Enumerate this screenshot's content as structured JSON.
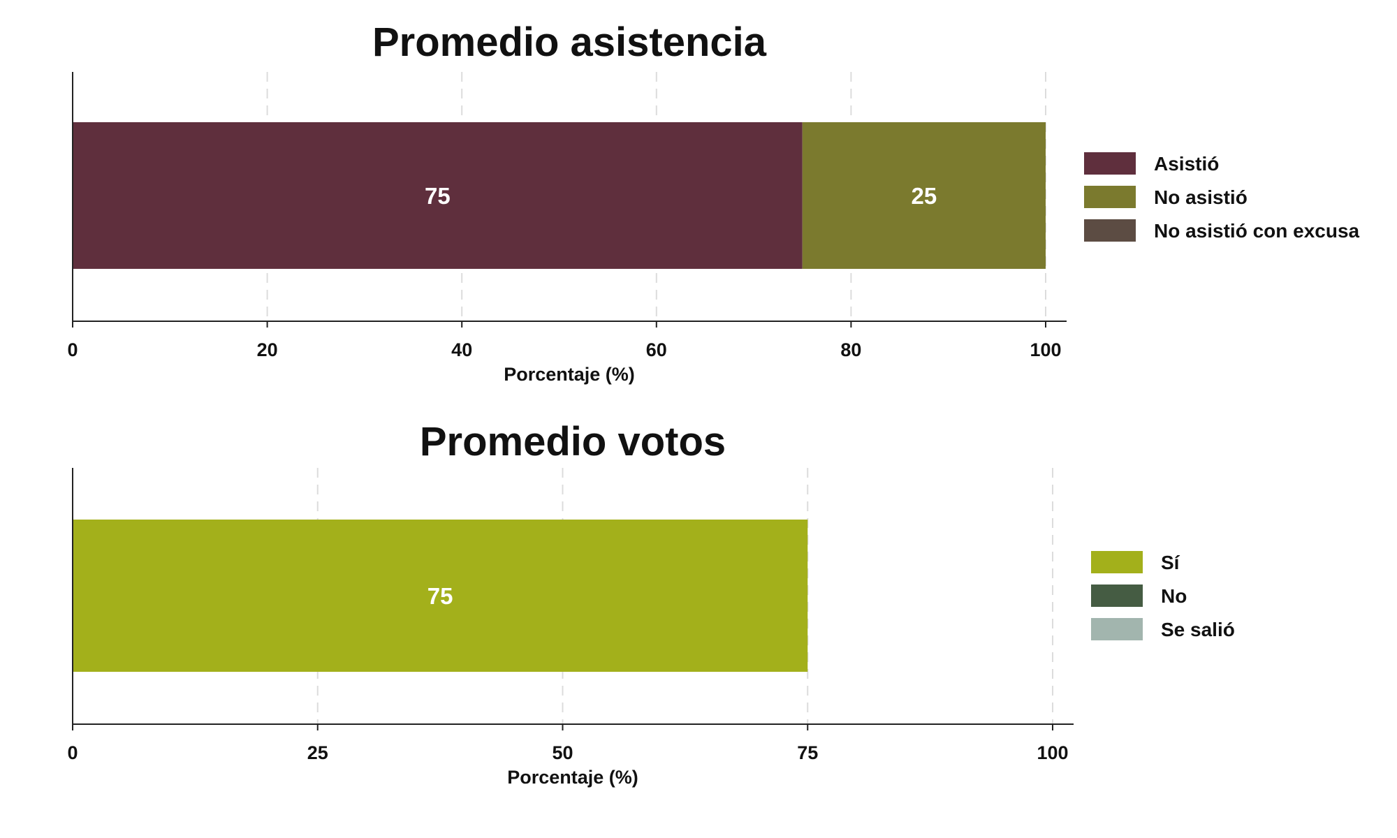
{
  "chart_data": [
    {
      "type": "bar",
      "orientation": "horizontal",
      "stacked": true,
      "title": "Promedio asistencia",
      "xlabel": "Porcentaje (%)",
      "xlim": [
        0,
        100
      ],
      "xticks": [
        0,
        20,
        40,
        60,
        80,
        100
      ],
      "grid": "vertical dashed",
      "legend": "right",
      "series": [
        {
          "name": "Asistió",
          "value": 75,
          "label": "75",
          "color": "#5f2f3d"
        },
        {
          "name": "No asistió",
          "value": 25,
          "label": "25",
          "color": "#7b7a2e"
        },
        {
          "name": "No asistió con excusa",
          "value": 0,
          "label": "",
          "color": "#5c4c43"
        }
      ]
    },
    {
      "type": "bar",
      "orientation": "horizontal",
      "stacked": true,
      "title": "Promedio votos",
      "xlabel": "Porcentaje (%)",
      "xlim": [
        0,
        100
      ],
      "xticks": [
        0,
        25,
        50,
        75,
        100
      ],
      "grid": "vertical dashed",
      "legend": "right",
      "series": [
        {
          "name": "Sí",
          "value": 75,
          "label": "75",
          "color": "#a3b01b"
        },
        {
          "name": "No",
          "value": 0,
          "label": "",
          "color": "#455c43"
        },
        {
          "name": "Se salió",
          "value": 0,
          "label": "",
          "color": "#a2b5ae"
        }
      ]
    }
  ]
}
